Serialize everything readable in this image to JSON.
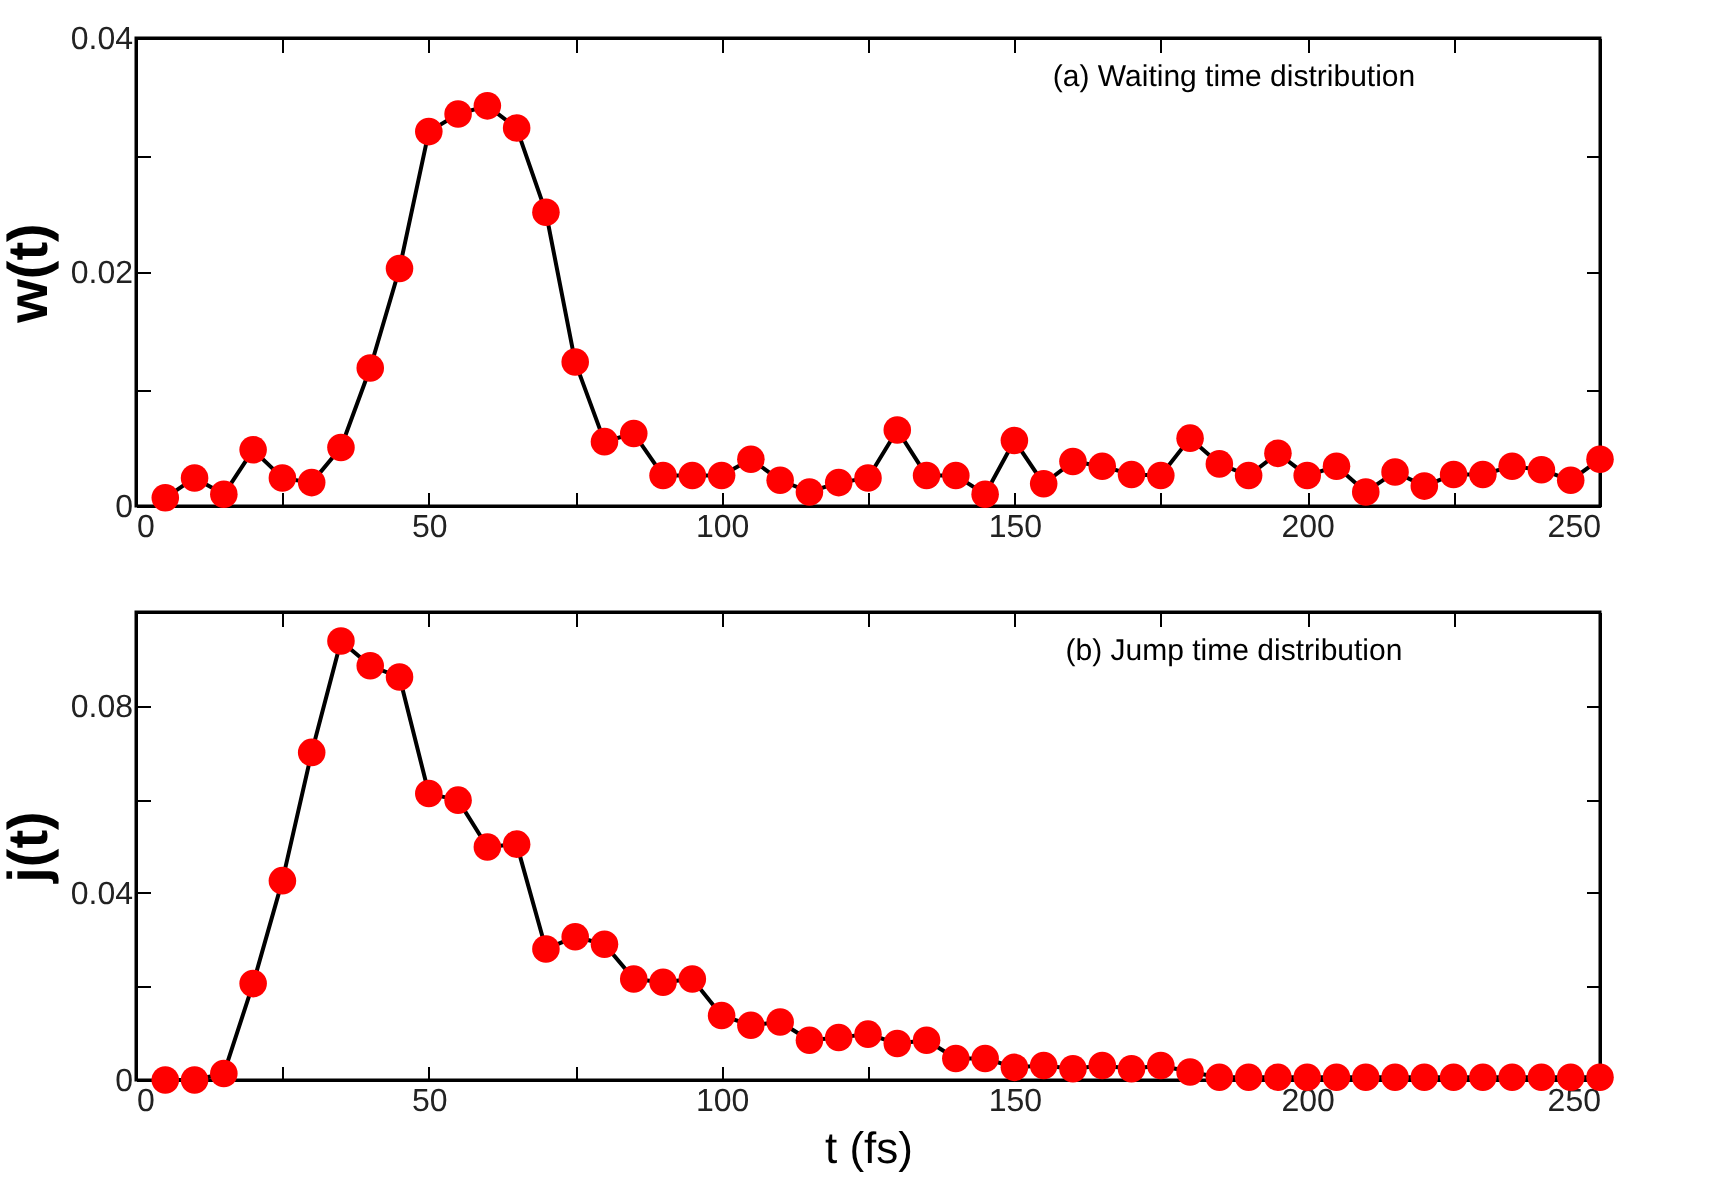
{
  "chart_data": [
    {
      "type": "line",
      "ylabel": "w(t)",
      "annotations": [
        "(a) Waiting time distribution"
      ],
      "marker": "circle",
      "x": [
        5,
        10,
        15,
        20,
        25,
        30,
        35,
        40,
        45,
        50,
        55,
        60,
        65,
        70,
        75,
        80,
        85,
        90,
        95,
        100,
        105,
        110,
        115,
        120,
        125,
        130,
        135,
        140,
        145,
        150,
        155,
        160,
        165,
        170,
        175,
        180,
        185,
        190,
        195,
        200,
        205,
        210,
        215,
        220,
        225,
        230,
        235,
        240,
        245,
        250
      ],
      "series": [
        {
          "color": "#ff0000",
          "values": [
            0.0007,
            0.0024,
            0.001,
            0.0048,
            0.0024,
            0.002,
            0.005,
            0.0118,
            0.0203,
            0.032,
            0.0335,
            0.0342,
            0.0323,
            0.0251,
            0.0123,
            0.0055,
            0.0062,
            0.0026,
            0.0026,
            0.0026,
            0.004,
            0.0022,
            0.0012,
            0.002,
            0.0024,
            0.0065,
            0.0026,
            0.0026,
            0.001,
            0.0056,
            0.0019,
            0.0038,
            0.0034,
            0.0027,
            0.0026,
            0.0058,
            0.0036,
            0.0026,
            0.0045,
            0.0026,
            0.0034,
            0.0012,
            0.0029,
            0.0017,
            0.0027,
            0.0027,
            0.0034,
            0.0031,
            0.0022,
            0.004
          ]
        }
      ],
      "xlim": [
        0,
        250
      ],
      "xticks": [
        0,
        {
          "value": 25,
          "label": null
        },
        50,
        {
          "value": 75,
          "label": null
        },
        100,
        {
          "value": 125,
          "label": null
        },
        150,
        {
          "value": 175,
          "label": null
        },
        200,
        {
          "value": 225,
          "label": null
        },
        250
      ],
      "ylim": [
        0,
        0.04
      ],
      "yticks": [
        0,
        {
          "value": 0.01,
          "label": null
        },
        0.02,
        {
          "value": 0.03,
          "label": null
        },
        0.04
      ]
    },
    {
      "type": "line",
      "xlabel": "t (fs)",
      "ylabel": "j(t)",
      "annotations": [
        "(b) Jump time distribution"
      ],
      "marker": "circle",
      "x": [
        5,
        10,
        15,
        20,
        25,
        30,
        35,
        40,
        45,
        50,
        55,
        60,
        65,
        70,
        75,
        80,
        85,
        90,
        95,
        100,
        105,
        110,
        115,
        120,
        125,
        130,
        135,
        140,
        145,
        150,
        155,
        160,
        165,
        170,
        175,
        180,
        185,
        190,
        195,
        200,
        205,
        210,
        215,
        220,
        225,
        230,
        235,
        240,
        245,
        250
      ],
      "series": [
        {
          "color": "#ff0000",
          "values": [
            0,
            0,
            0.0014,
            0.0206,
            0.0426,
            0.07,
            0.0938,
            0.0885,
            0.0861,
            0.0612,
            0.0598,
            0.0498,
            0.0504,
            0.028,
            0.0306,
            0.029,
            0.0216,
            0.0209,
            0.0216,
            0.0138,
            0.0117,
            0.0124,
            0.0085,
            0.0091,
            0.0098,
            0.0078,
            0.0085,
            0.0046,
            0.0046,
            0.0027,
            0.0031,
            0.0024,
            0.0031,
            0.0024,
            0.0031,
            0.0017,
            0.0006,
            0.0006,
            0.0006,
            0.0006,
            0.0006,
            0.0006,
            0.0006,
            0.0006,
            0.0006,
            0.0006,
            0.0006,
            0.0006,
            0.0006,
            0.0006
          ]
        }
      ],
      "xlim": [
        0,
        250
      ],
      "xticks": [
        0,
        {
          "value": 25,
          "label": null
        },
        50,
        {
          "value": 75,
          "label": null
        },
        100,
        {
          "value": 125,
          "label": null
        },
        150,
        {
          "value": 175,
          "label": null
        },
        200,
        {
          "value": 225,
          "label": null
        },
        250
      ],
      "ylim": [
        0,
        0.1
      ],
      "yticks": [
        0,
        {
          "value": 0.02,
          "label": null
        },
        0.04,
        {
          "value": 0.06,
          "label": null
        },
        0.08
      ]
    }
  ]
}
